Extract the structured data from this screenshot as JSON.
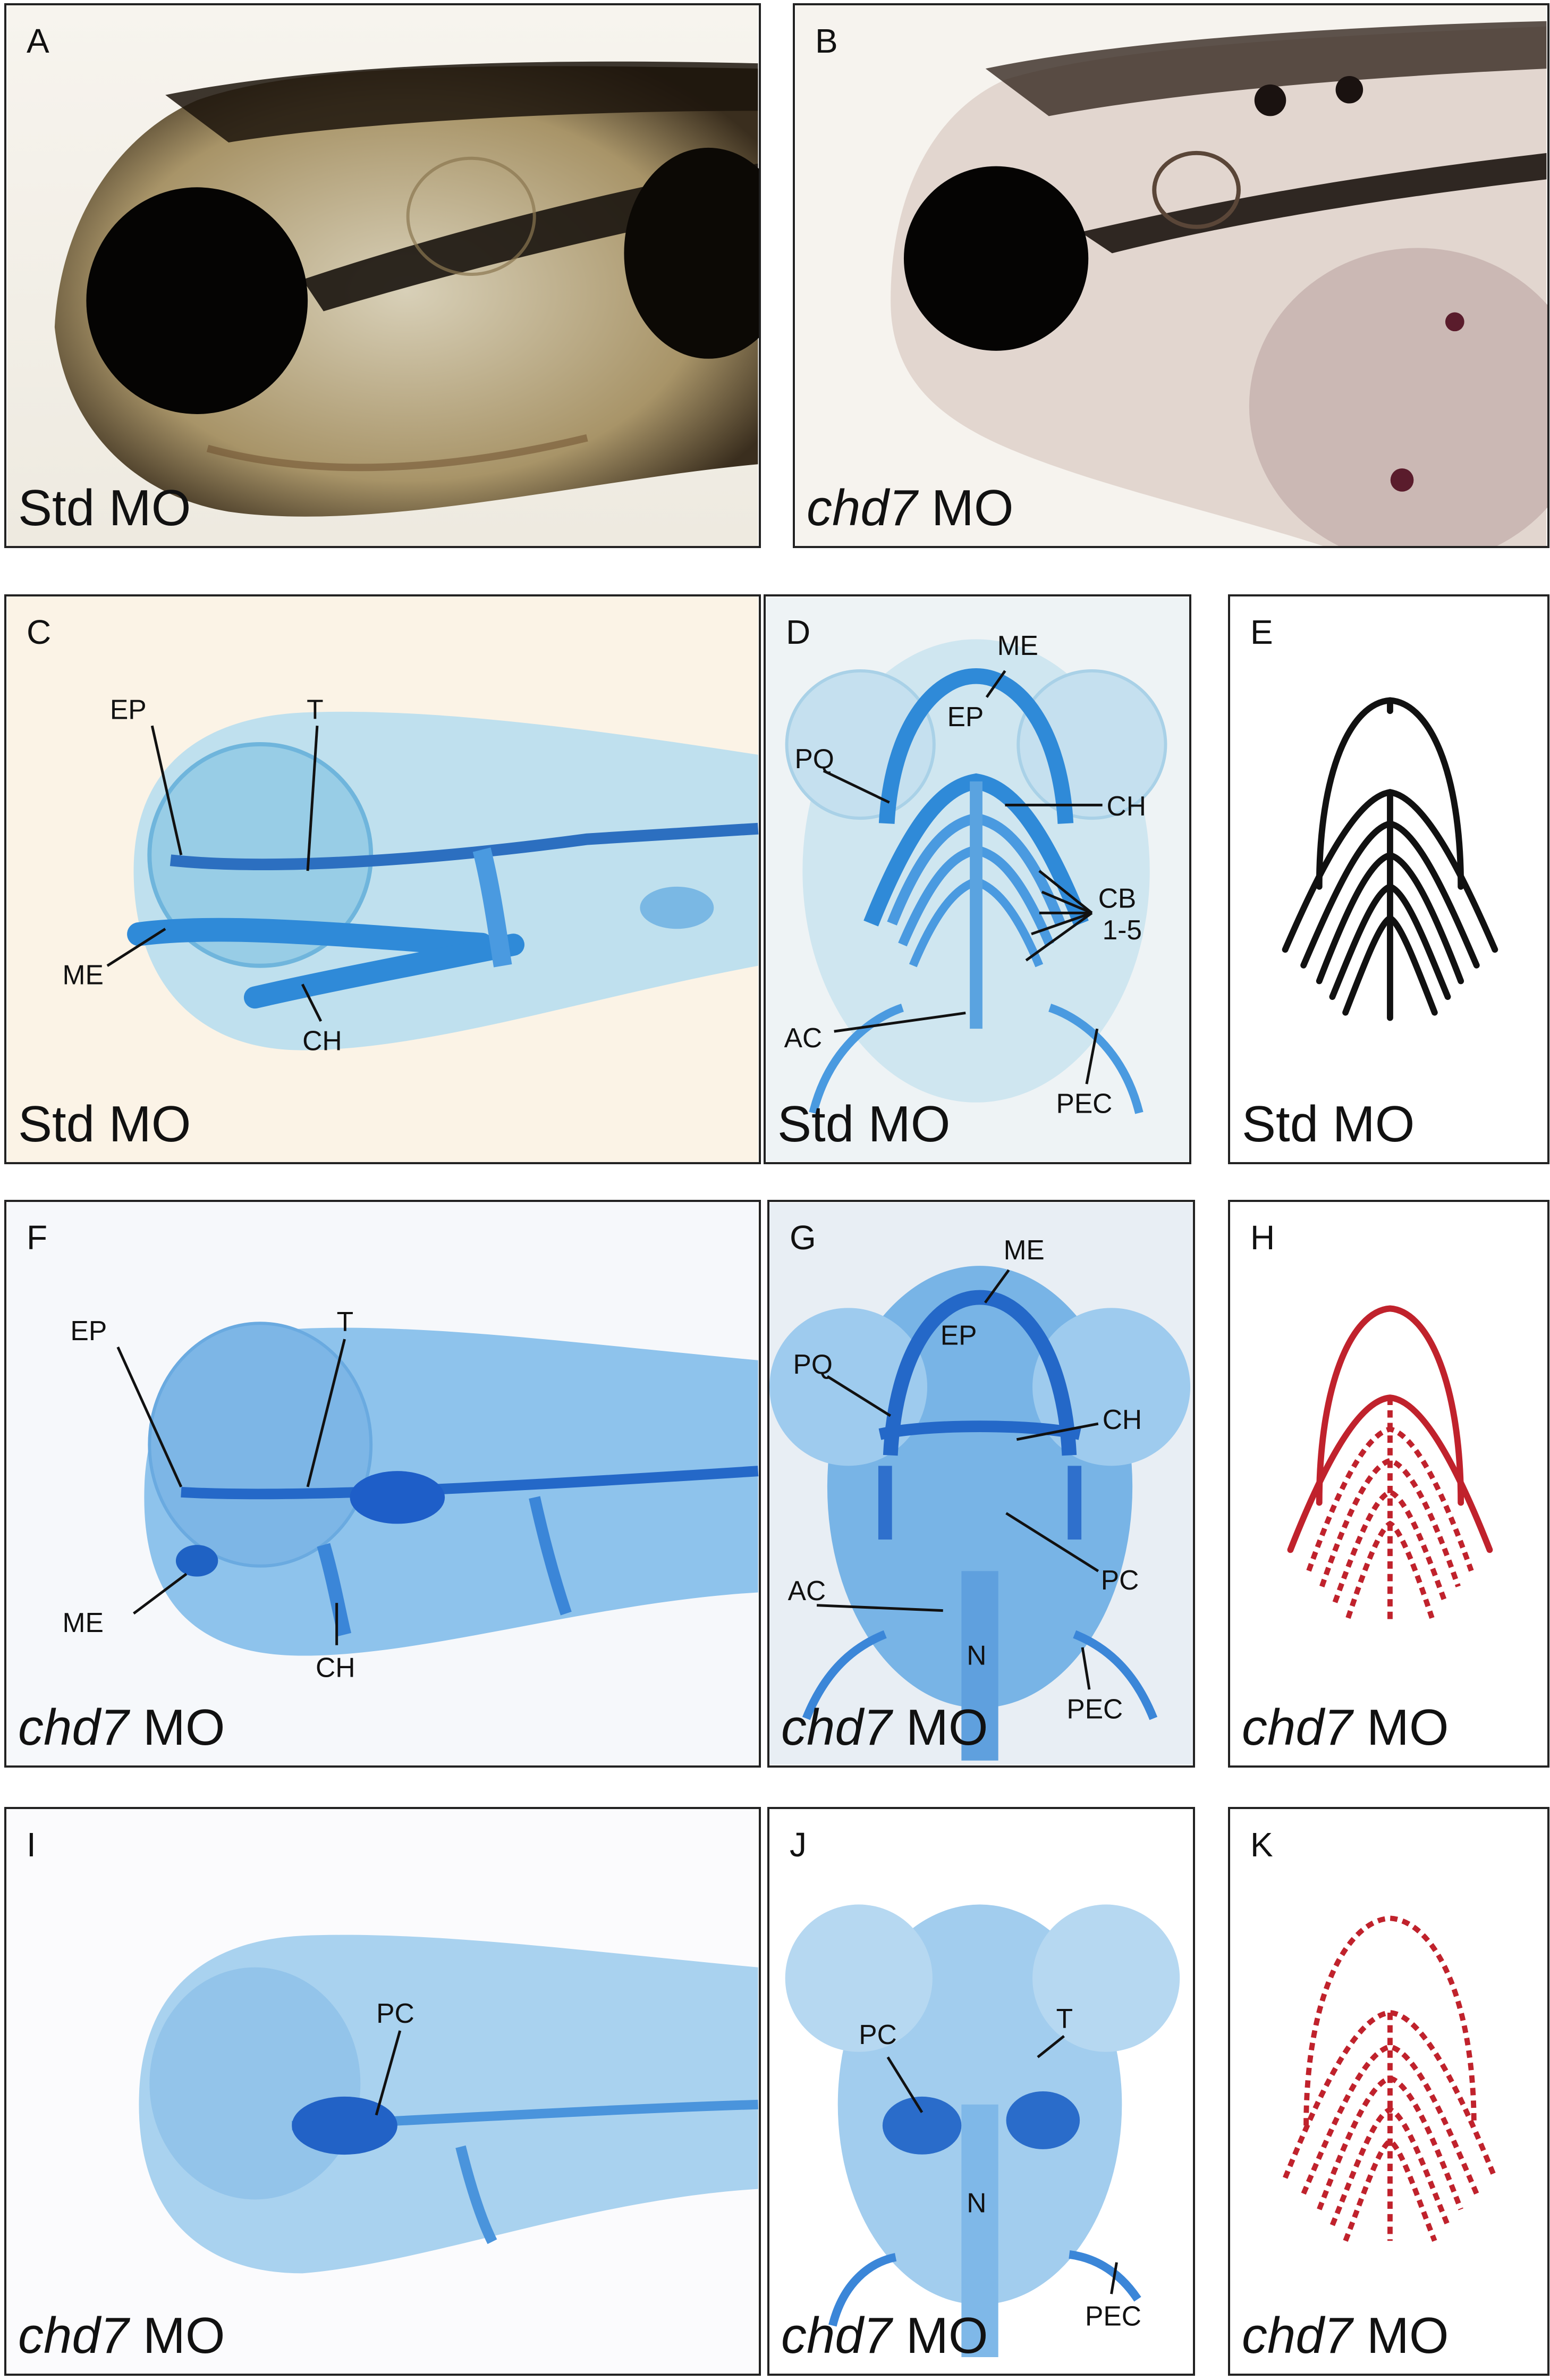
{
  "panels": {
    "A": {
      "letter": "A",
      "caption_plain": "Std MO"
    },
    "B": {
      "letter": "B",
      "caption_gene": "chd7",
      "caption_rest": " MO"
    },
    "C": {
      "letter": "C",
      "caption_plain": "Std MO",
      "labels": {
        "ep": "EP",
        "t": "T",
        "me": "ME",
        "ch": "CH"
      }
    },
    "D": {
      "letter": "D",
      "caption_plain": "Std MO",
      "labels": {
        "me": "ME",
        "ep": "EP",
        "pq": "PQ",
        "ch": "CH",
        "cb": "CB",
        "cb_range": "1-5",
        "ac": "AC",
        "pec": "PEC"
      }
    },
    "E": {
      "letter": "E",
      "caption_plain": "Std MO"
    },
    "F": {
      "letter": "F",
      "caption_gene": "chd7",
      "caption_rest": " MO",
      "labels": {
        "ep": "EP",
        "t": "T",
        "me": "ME",
        "ch": "CH"
      }
    },
    "G": {
      "letter": "G",
      "caption_gene": "chd7",
      "caption_rest": " MO",
      "labels": {
        "me": "ME",
        "ep": "EP",
        "pq": "PQ",
        "ch": "CH",
        "pc": "PC",
        "ac": "AC",
        "n": "N",
        "pec": "PEC"
      }
    },
    "H": {
      "letter": "H",
      "caption_gene": "chd7",
      "caption_rest": " MO"
    },
    "I": {
      "letter": "I",
      "caption_gene": "chd7",
      "caption_rest": " MO",
      "labels": {
        "pc": "PC"
      }
    },
    "J": {
      "letter": "J",
      "caption_gene": "chd7",
      "caption_rest": " MO",
      "labels": {
        "pc": "PC",
        "t": "T",
        "n": "N",
        "pec": "PEC"
      }
    },
    "K": {
      "letter": "K",
      "caption_gene": "chd7",
      "caption_rest": " MO"
    }
  },
  "colors": {
    "cartilage_blue": "#3a8fd8",
    "diagram_black": "#111111",
    "diagram_red": "#c0222c"
  }
}
